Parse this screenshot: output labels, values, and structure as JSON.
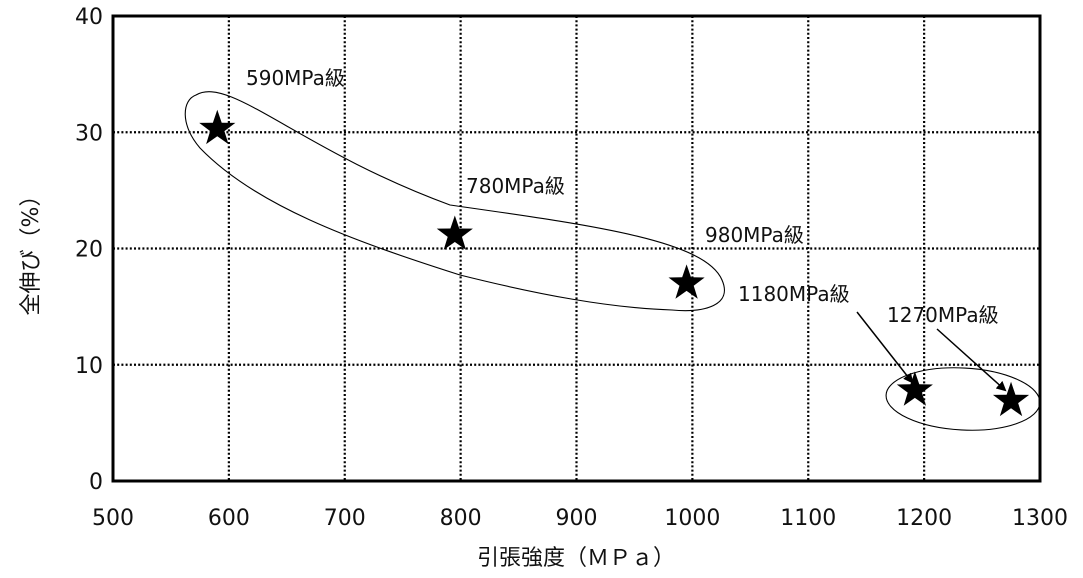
{
  "chart_data": {
    "type": "scatter",
    "title": "",
    "xlabel": "引張強度（ＭＰａ）",
    "ylabel": "全伸び（%）",
    "xlim": [
      500,
      1300
    ],
    "ylim": [
      0,
      40
    ],
    "x_ticks": [
      "500",
      "600",
      "700",
      "800",
      "900",
      "1000",
      "1100",
      "1200",
      "1300"
    ],
    "y_ticks": [
      "0",
      "10",
      "20",
      "30",
      "40"
    ],
    "grid": true,
    "marker": "star",
    "points": [
      {
        "label": "590MPa級",
        "x": 590,
        "y": 30.3
      },
      {
        "label": "780MPa級",
        "x": 795,
        "y": 21.2
      },
      {
        "label": "980MPa級",
        "x": 995,
        "y": 17.0
      },
      {
        "label": "1180MPa級",
        "x": 1192,
        "y": 7.8
      },
      {
        "label": "1270MPa級",
        "x": 1275,
        "y": 6.9
      }
    ]
  }
}
